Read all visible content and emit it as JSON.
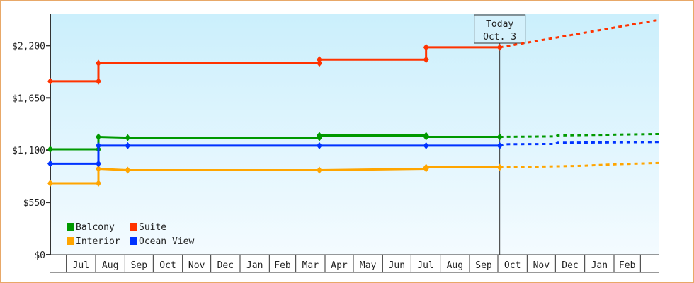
{
  "chart_data": {
    "type": "line",
    "title": "",
    "xlabel": "",
    "ylabel": "",
    "ylim": [
      0,
      2530
    ],
    "yticks": [
      0,
      550,
      1100,
      1650,
      2200
    ],
    "ytick_labels": [
      "$0",
      "$550",
      "$1,100",
      "$1,650",
      "$2,200"
    ],
    "x_start": "Jun 14",
    "x_end": "Mar 21",
    "month_labels": [
      "Jul",
      "Aug",
      "Sep",
      "Oct",
      "Nov",
      "Dec",
      "Jan",
      "Feb",
      "Mar",
      "Apr",
      "May",
      "Jun",
      "Jul",
      "Aug",
      "Sep",
      "Oct",
      "Nov",
      "Dec",
      "Jan",
      "Feb"
    ],
    "today": {
      "line1": "Today",
      "line2": "Oct. 3",
      "date": "Oct 3"
    },
    "legend_placement": "bottom-left",
    "grid": false,
    "background": [
      "#cbeffc",
      "#f4fbff"
    ],
    "series": [
      {
        "name": "Balcony",
        "color": "#009900",
        "points": [
          [
            "Jun 14",
            1109
          ],
          [
            "Aug 4",
            1109
          ],
          [
            "Aug 4",
            1239
          ],
          [
            "Sep 4",
            1231
          ],
          [
            "Mar 26",
            1231
          ],
          [
            "Mar 26",
            1254
          ],
          [
            "Jul 17",
            1254
          ],
          [
            "Jul 17",
            1239
          ],
          [
            "Oct 3",
            1239
          ]
        ],
        "forecast": [
          [
            "Oct 3",
            1239
          ],
          [
            "Dec 1",
            1244
          ],
          [
            "Dec 3",
            1254
          ],
          [
            "Mar 21",
            1269
          ]
        ]
      },
      {
        "name": "Suite",
        "color": "#ff3300",
        "points": [
          [
            "Jun 14",
            1824
          ],
          [
            "Aug 4",
            1824
          ],
          [
            "Aug 4",
            2014
          ],
          [
            "Mar 26",
            2014
          ],
          [
            "Mar 26",
            2052
          ],
          [
            "Jul 17",
            2052
          ],
          [
            "Jul 17",
            2181
          ],
          [
            "Oct 3",
            2181
          ]
        ],
        "forecast": [
          [
            "Oct 3",
            2181
          ],
          [
            "Mar 21",
            2470
          ]
        ]
      },
      {
        "name": "Interior",
        "color": "#ffa500",
        "points": [
          [
            "Jun 14",
            752
          ],
          [
            "Aug 4",
            752
          ],
          [
            "Aug 4",
            904
          ],
          [
            "Sep 4",
            889
          ],
          [
            "Mar 26",
            889
          ],
          [
            "Jul 17",
            904
          ],
          [
            "Jul 17",
            919
          ],
          [
            "Oct 3",
            919
          ]
        ],
        "forecast": [
          [
            "Oct 3",
            919
          ],
          [
            "Dec 31",
            935
          ],
          [
            "Jan 31",
            950
          ],
          [
            "Mar 21",
            965
          ]
        ]
      },
      {
        "name": "Ocean View",
        "color": "#0033ff",
        "points": [
          [
            "Jun 14",
            957
          ],
          [
            "Aug 4",
            957
          ],
          [
            "Aug 4",
            1147
          ],
          [
            "Sep 4",
            1147
          ],
          [
            "Mar 26",
            1147
          ],
          [
            "Jul 17",
            1147
          ],
          [
            "Oct 3",
            1147
          ]
        ],
        "forecast": [
          [
            "Oct 3",
            1147
          ],
          [
            "Oct 8",
            1162
          ],
          [
            "Dec 1",
            1165
          ],
          [
            "Dec 3",
            1177
          ],
          [
            "Mar 21",
            1185
          ]
        ]
      }
    ]
  }
}
